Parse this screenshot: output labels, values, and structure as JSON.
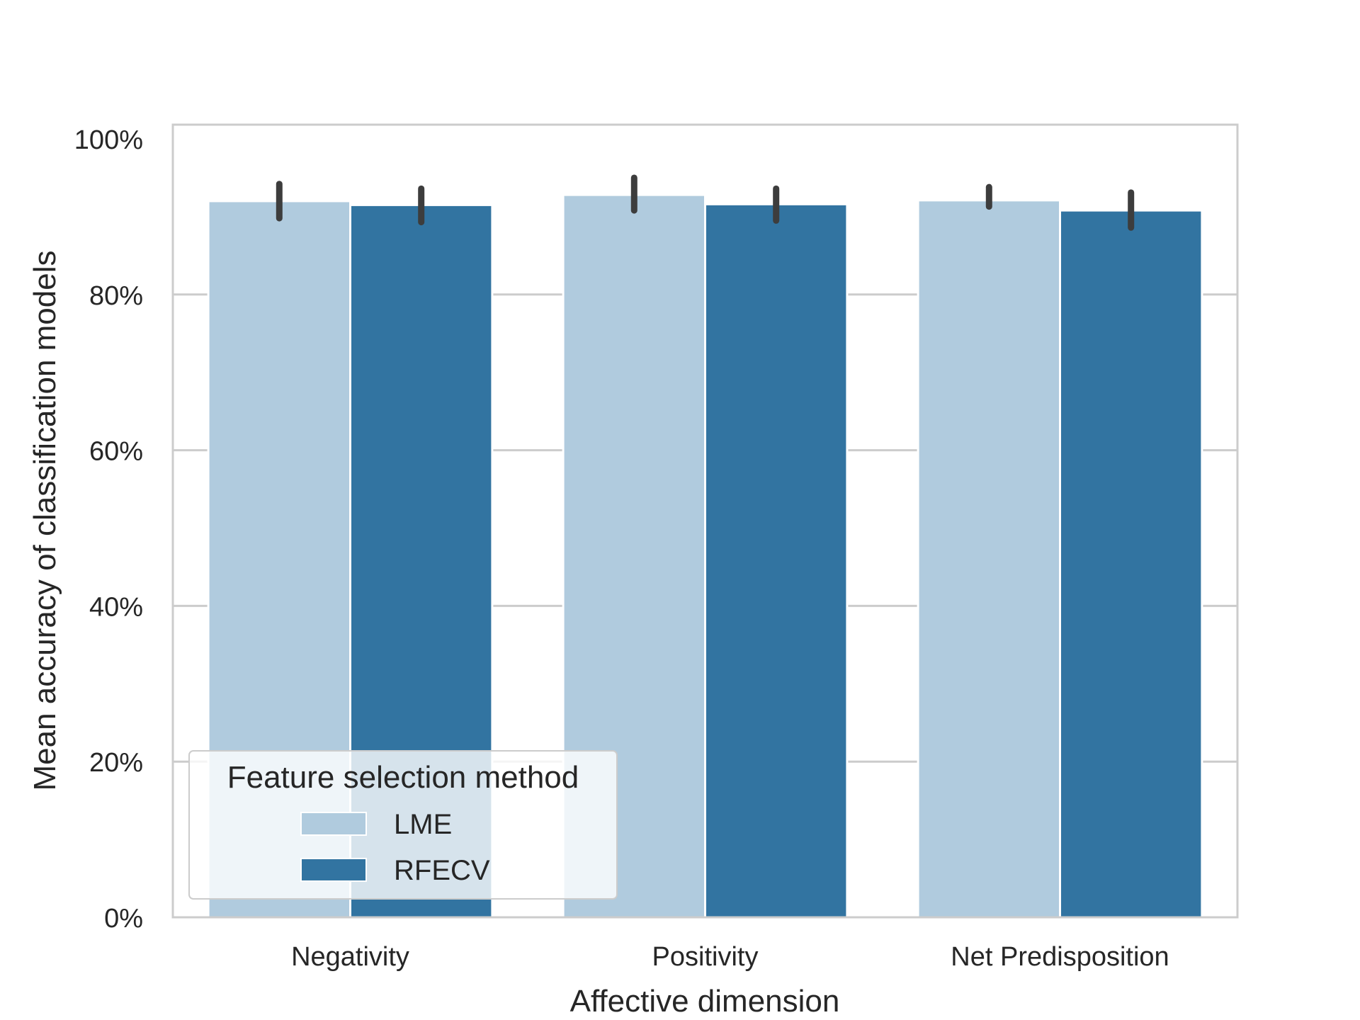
{
  "chart_data": {
    "type": "bar",
    "title": "",
    "xlabel": "Affective dimension",
    "ylabel": "Mean accuracy of classification models",
    "categories": [
      "Negativity",
      "Positivity",
      "Net Predisposition"
    ],
    "series": [
      {
        "name": "LME",
        "color": "#b0cbde",
        "values": [
          92.0,
          92.8,
          92.1
        ],
        "err_low": [
          89.8,
          90.8,
          91.3
        ],
        "err_high": [
          94.2,
          95.0,
          93.8
        ]
      },
      {
        "name": "RFECV",
        "color": "#3274a1",
        "values": [
          91.5,
          91.6,
          90.8
        ],
        "err_low": [
          89.3,
          89.5,
          88.6
        ],
        "err_high": [
          93.6,
          93.6,
          93.1
        ]
      }
    ],
    "ylim": [
      0,
      100
    ],
    "yticks": [
      0,
      20,
      40,
      60,
      80,
      100
    ],
    "ytick_labels": [
      "0%",
      "20%",
      "40%",
      "60%",
      "80%",
      "100%"
    ],
    "grid": "y",
    "legend": {
      "title": "Feature selection method",
      "placement": "lower-left"
    }
  }
}
